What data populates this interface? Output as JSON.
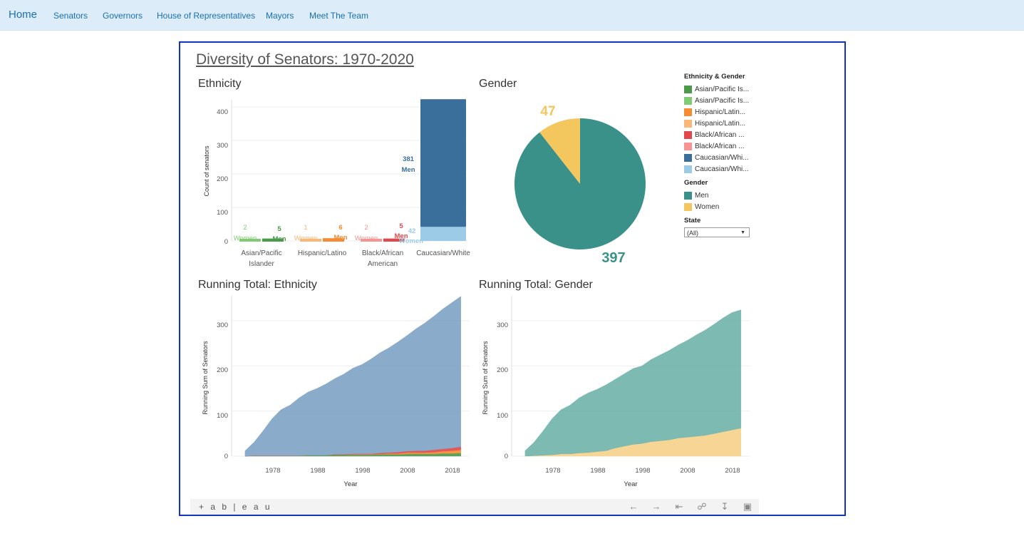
{
  "nav": {
    "home": "Home",
    "links": [
      "Senators",
      "Governors",
      "House of Representatives",
      "Mayors",
      "Meet The Team"
    ]
  },
  "dashboard": {
    "title": "Diversity of Senators: 1970-2020",
    "toolbar_logo": "+ a b | e a u"
  },
  "ethnicity_chart": {
    "title": "Ethnicity",
    "ylabel": "Count of senators",
    "y_ticks": [
      "0",
      "100",
      "200",
      "300",
      "400"
    ],
    "categories": [
      "Asian/Pacific\nIslander",
      "Hispanic/Latino",
      "Black/African\nAmerican",
      "Caucasian/White"
    ],
    "data_labels": {
      "asian_women": {
        "value": "2",
        "label": "Women"
      },
      "asian_men": {
        "value": "5",
        "label": "Men"
      },
      "hisp_women": {
        "value": "1",
        "label": "Women"
      },
      "hisp_men": {
        "value": "6",
        "label": "Men"
      },
      "black_women": {
        "value": "2",
        "label": "Women"
      },
      "black_men": {
        "value": "5",
        "label": "Men"
      },
      "white_men": {
        "value": "381",
        "label": "Men"
      },
      "white_women": {
        "value": "42",
        "label": "Women"
      }
    }
  },
  "gender_chart": {
    "title": "Gender",
    "women_value": "47",
    "men_value": "397"
  },
  "running_ethnicity": {
    "title": "Running Total: Ethnicity",
    "ylabel": "Running Sum of Senators",
    "xlabel": "Year",
    "y_ticks": [
      "0",
      "100",
      "200",
      "300"
    ],
    "x_ticks": [
      "1978",
      "1988",
      "1998",
      "2008",
      "2018"
    ]
  },
  "running_gender": {
    "title": "Running Total: Gender",
    "ylabel": "Running Sum of Senators",
    "xlabel": "Year",
    "y_ticks": [
      "0",
      "100",
      "200",
      "300"
    ],
    "x_ticks": [
      "1978",
      "1988",
      "1998",
      "2008",
      "2018"
    ]
  },
  "legend": {
    "eth_gender_title": "Ethnicity & Gender",
    "eth_gender_items": [
      {
        "label": "Asian/Pacific Is...",
        "color": "#4a9a4a"
      },
      {
        "label": "Asian/Pacific Is...",
        "color": "#7fcc72"
      },
      {
        "label": "Hispanic/Latin...",
        "color": "#f58b32"
      },
      {
        "label": "Hispanic/Latin...",
        "color": "#fbb775"
      },
      {
        "label": "Black/African ...",
        "color": "#e2474b"
      },
      {
        "label": "Black/African ...",
        "color": "#f59492"
      },
      {
        "label": "Caucasian/Whi...",
        "color": "#3a6f9c"
      },
      {
        "label": "Caucasian/Whi...",
        "color": "#9ccbe8"
      }
    ],
    "gender_title": "Gender",
    "gender_items": [
      {
        "label": "Men",
        "color": "#3a9189"
      },
      {
        "label": "Women",
        "color": "#f4c65e"
      }
    ],
    "state_title": "State",
    "state_value": "(All)"
  },
  "chart_data": [
    {
      "type": "bar",
      "title": "Ethnicity",
      "ylabel": "Count of senators",
      "ylim": [
        0,
        420
      ],
      "categories": [
        "Asian/Pacific Islander",
        "Hispanic/Latino",
        "Black/African American",
        "Caucasian/White"
      ],
      "series": [
        {
          "name": "Women",
          "values": [
            2,
            1,
            2,
            42
          ]
        },
        {
          "name": "Men",
          "values": [
            5,
            6,
            5,
            381
          ]
        }
      ]
    },
    {
      "type": "pie",
      "title": "Gender",
      "categories": [
        "Men",
        "Women"
      ],
      "values": [
        397,
        47
      ]
    },
    {
      "type": "area",
      "title": "Running Total: Ethnicity",
      "xlabel": "Year",
      "ylabel": "Running Sum of Senators",
      "ylim": [
        0,
        340
      ],
      "x": [
        1972,
        1974,
        1976,
        1978,
        1980,
        1982,
        1984,
        1986,
        1988,
        1990,
        1992,
        1994,
        1996,
        1998,
        2000,
        2002,
        2004,
        2006,
        2008,
        2010,
        2012,
        2014,
        2016,
        2018,
        2020
      ],
      "series": [
        {
          "name": "Caucasian/White",
          "values": [
            12,
            30,
            55,
            82,
            102,
            112,
            128,
            140,
            148,
            158,
            168,
            178,
            190,
            198,
            210,
            222,
            232,
            244,
            256,
            270,
            283,
            296,
            310,
            322,
            333
          ]
        },
        {
          "name": "Black/African American",
          "values": [
            0,
            0,
            0,
            0,
            0,
            0,
            0,
            0,
            0,
            0,
            1,
            1,
            1,
            1,
            1,
            2,
            2,
            3,
            3,
            4,
            4,
            5,
            5,
            6,
            7
          ]
        },
        {
          "name": "Hispanic/Latino",
          "values": [
            0,
            0,
            0,
            0,
            0,
            0,
            0,
            0,
            0,
            0,
            0,
            0,
            1,
            1,
            1,
            1,
            2,
            2,
            3,
            3,
            3,
            4,
            5,
            6,
            7
          ]
        },
        {
          "name": "Asian/Pacific Islander",
          "values": [
            0,
            1,
            1,
            1,
            1,
            1,
            1,
            2,
            2,
            2,
            3,
            3,
            3,
            3,
            3,
            4,
            4,
            4,
            5,
            5,
            5,
            5,
            6,
            6,
            7
          ]
        }
      ]
    },
    {
      "type": "area",
      "title": "Running Total: Gender",
      "xlabel": "Year",
      "ylabel": "Running Sum of Senators",
      "ylim": [
        0,
        340
      ],
      "x": [
        1972,
        1974,
        1976,
        1978,
        1980,
        1982,
        1984,
        1986,
        1988,
        1990,
        1992,
        1994,
        1996,
        1998,
        2000,
        2002,
        2004,
        2006,
        2008,
        2010,
        2012,
        2014,
        2016,
        2018,
        2020
      ],
      "series": [
        {
          "name": "Men",
          "values": [
            12,
            30,
            54,
            80,
            98,
            108,
            122,
            132,
            138,
            146,
            152,
            160,
            168,
            172,
            182,
            190,
            198,
            206,
            214,
            224,
            233,
            242,
            252,
            260,
            262
          ]
        },
        {
          "name": "Women",
          "values": [
            0,
            1,
            2,
            3,
            5,
            5,
            7,
            8,
            10,
            12,
            18,
            22,
            26,
            28,
            32,
            34,
            36,
            40,
            42,
            44,
            46,
            50,
            54,
            58,
            62
          ]
        }
      ]
    }
  ]
}
